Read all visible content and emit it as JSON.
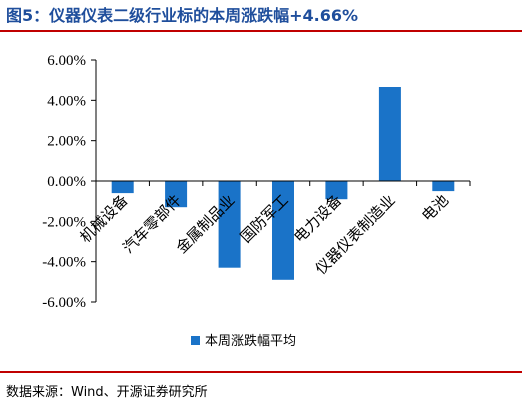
{
  "header": {
    "title": "图5：仪器仪表二级行业标的本周涨跌幅+4.66%"
  },
  "footer": {
    "source": "数据来源：Wind、开源证券研究所"
  },
  "colors": {
    "bar": "#1a73c8",
    "rule": "#c00000",
    "title": "#1f4e9c",
    "axis": "#000000"
  },
  "chart_data": {
    "type": "bar",
    "title": "",
    "xlabel": "",
    "ylabel": "",
    "categories": [
      "机械设备",
      "汽车零部件",
      "金属制品业",
      "国防军工",
      "电力设备",
      "仪器仪表制造业",
      "电池"
    ],
    "series": [
      {
        "name": "本周涨跌幅平均",
        "values": [
          -0.6,
          -1.3,
          -4.3,
          -4.9,
          -0.9,
          4.66,
          -0.5
        ]
      }
    ],
    "ylim": [
      -6,
      6
    ],
    "yticks": [
      "6.00%",
      "4.00%",
      "2.00%",
      "0.00%",
      "-2.00%",
      "-4.00%",
      "-6.00%"
    ],
    "ytick_values": [
      6,
      4,
      2,
      0,
      -2,
      -4,
      -6
    ],
    "grid": false,
    "legend_position": "bottom"
  }
}
